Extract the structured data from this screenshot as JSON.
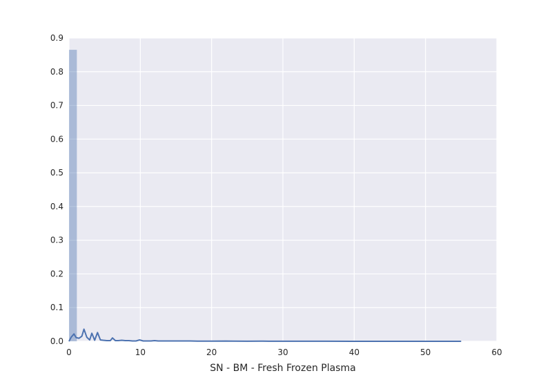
{
  "chart_data": {
    "type": "bar",
    "xlabel": "SN - BM - Fresh Frozen Plasma",
    "ylabel": "",
    "title": "",
    "xlim": [
      0,
      60
    ],
    "ylim": [
      0,
      0.9
    ],
    "xticks": [
      "0",
      "10",
      "20",
      "30",
      "40",
      "50",
      "60"
    ],
    "yticks": [
      "0.0",
      "0.1",
      "0.2",
      "0.3",
      "0.4",
      "0.5",
      "0.6",
      "0.7",
      "0.8",
      "0.9"
    ],
    "grid": true,
    "legend": "none",
    "histogram": {
      "bins": [
        {
          "x0": 0,
          "x1": 1.1,
          "density": 0.865
        }
      ]
    },
    "kde": {
      "x": [
        0,
        0.3,
        0.7,
        1.0,
        1.4,
        1.8,
        2.1,
        2.5,
        2.9,
        3.2,
        3.6,
        4.0,
        4.4,
        4.8,
        5.3,
        5.8,
        6.1,
        6.5,
        6.9,
        7.4,
        7.9,
        8.4,
        8.9,
        9.4,
        9.9,
        10.4,
        11.0,
        11.5,
        12.0,
        12.5,
        13.0,
        13.5,
        14.0,
        15.0,
        16.0,
        17.0,
        18.0,
        20.0,
        22.0,
        23.0,
        25.0,
        27.0,
        28.0,
        30.0,
        33.0,
        36.0,
        40.0,
        45.0,
        50.0,
        55.0
      ],
      "y": [
        0.0,
        0.012,
        0.022,
        0.011,
        0.009,
        0.015,
        0.036,
        0.012,
        0.004,
        0.024,
        0.003,
        0.026,
        0.004,
        0.003,
        0.002,
        0.002,
        0.01,
        0.002,
        0.002,
        0.003,
        0.002,
        0.002,
        0.001,
        0.001,
        0.004,
        0.001,
        0.001,
        0.001,
        0.002,
        0.001,
        0.001,
        0.001,
        0.001,
        0.001,
        0.001,
        0.001,
        0.0005,
        0.0005,
        0.0008,
        0.0004,
        0.0003,
        0.0006,
        0.0003,
        0.0003,
        0.0002,
        0.0002,
        0.0001,
        0.0001,
        0.0001,
        0.0
      ]
    },
    "colors": {
      "background": "#eaeaf2",
      "grid": "#ffffff",
      "bar": "#4c72b0",
      "line": "#4c72b0",
      "text": "#262626"
    }
  }
}
